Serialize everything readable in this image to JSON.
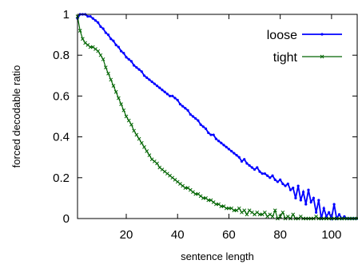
{
  "chart_data": {
    "type": "line",
    "title": "",
    "xlabel": "sentence length",
    "ylabel": "forced decodable ratio",
    "xlim": [
      1,
      110
    ],
    "ylim": [
      0,
      1
    ],
    "xticks": [
      20,
      40,
      60,
      80,
      100
    ],
    "yticks": [
      0,
      0.2,
      0.4,
      0.6,
      0.8,
      1
    ],
    "ytick_labels": [
      "0",
      "0.2",
      "0.4",
      "0.6",
      "0.8",
      "1"
    ],
    "legend_position": "top-right",
    "grid": false,
    "series": [
      {
        "name": "loose",
        "color": "#0000ff",
        "marker": "dot",
        "points": [
          [
            1,
            0.98
          ],
          [
            2,
            1.0
          ],
          [
            3,
            1.0
          ],
          [
            4,
            1.0
          ],
          [
            5,
            0.99
          ],
          [
            6,
            0.99
          ],
          [
            7,
            0.98
          ],
          [
            8,
            0.97
          ],
          [
            9,
            0.96
          ],
          [
            10,
            0.94
          ],
          [
            11,
            0.93
          ],
          [
            12,
            0.91
          ],
          [
            13,
            0.9
          ],
          [
            14,
            0.88
          ],
          [
            15,
            0.87
          ],
          [
            16,
            0.85
          ],
          [
            17,
            0.84
          ],
          [
            18,
            0.82
          ],
          [
            19,
            0.81
          ],
          [
            20,
            0.79
          ],
          [
            21,
            0.78
          ],
          [
            22,
            0.77
          ],
          [
            23,
            0.75
          ],
          [
            24,
            0.74
          ],
          [
            25,
            0.73
          ],
          [
            26,
            0.72
          ],
          [
            27,
            0.7
          ],
          [
            28,
            0.69
          ],
          [
            29,
            0.68
          ],
          [
            30,
            0.67
          ],
          [
            31,
            0.66
          ],
          [
            32,
            0.65
          ],
          [
            33,
            0.64
          ],
          [
            34,
            0.63
          ],
          [
            35,
            0.62
          ],
          [
            36,
            0.61
          ],
          [
            37,
            0.6
          ],
          [
            38,
            0.6
          ],
          [
            39,
            0.59
          ],
          [
            40,
            0.58
          ],
          [
            41,
            0.56
          ],
          [
            42,
            0.55
          ],
          [
            43,
            0.54
          ],
          [
            44,
            0.53
          ],
          [
            45,
            0.51
          ],
          [
            46,
            0.5
          ],
          [
            47,
            0.49
          ],
          [
            48,
            0.48
          ],
          [
            49,
            0.46
          ],
          [
            50,
            0.45
          ],
          [
            51,
            0.44
          ],
          [
            52,
            0.42
          ],
          [
            53,
            0.41
          ],
          [
            54,
            0.41
          ],
          [
            55,
            0.39
          ],
          [
            56,
            0.38
          ],
          [
            57,
            0.37
          ],
          [
            58,
            0.36
          ],
          [
            59,
            0.35
          ],
          [
            60,
            0.34
          ],
          [
            61,
            0.33
          ],
          [
            62,
            0.32
          ],
          [
            63,
            0.31
          ],
          [
            64,
            0.3
          ],
          [
            65,
            0.28
          ],
          [
            66,
            0.29
          ],
          [
            67,
            0.27
          ],
          [
            68,
            0.26
          ],
          [
            69,
            0.25
          ],
          [
            70,
            0.24
          ],
          [
            71,
            0.25
          ],
          [
            72,
            0.23
          ],
          [
            73,
            0.22
          ],
          [
            74,
            0.22
          ],
          [
            75,
            0.21
          ],
          [
            76,
            0.2
          ],
          [
            77,
            0.21
          ],
          [
            78,
            0.19
          ],
          [
            79,
            0.18
          ],
          [
            80,
            0.19
          ],
          [
            81,
            0.17
          ],
          [
            82,
            0.16
          ],
          [
            83,
            0.17
          ],
          [
            84,
            0.14
          ],
          [
            85,
            0.15
          ],
          [
            86,
            0.1
          ],
          [
            87,
            0.16
          ],
          [
            88,
            0.09
          ],
          [
            89,
            0.13
          ],
          [
            90,
            0.07
          ],
          [
            91,
            0.14
          ],
          [
            92,
            0.08
          ],
          [
            93,
            0.1
          ],
          [
            94,
            0.03
          ],
          [
            95,
            0.09
          ],
          [
            96,
            0.0
          ],
          [
            97,
            0.05
          ],
          [
            98,
            0.01
          ],
          [
            99,
            0.03
          ],
          [
            100,
            0.0
          ],
          [
            101,
            0.07
          ],
          [
            102,
            0.0
          ],
          [
            103,
            0.02
          ],
          [
            104,
            0.0
          ],
          [
            105,
            0.01
          ],
          [
            106,
            0.0
          ],
          [
            107,
            0.0
          ],
          [
            108,
            0.0
          ],
          [
            109,
            0.0
          ],
          [
            110,
            0.0
          ]
        ]
      },
      {
        "name": "tight",
        "color": "#006400",
        "marker": "x",
        "points": [
          [
            1,
            0.99
          ],
          [
            2,
            0.92
          ],
          [
            3,
            0.88
          ],
          [
            4,
            0.86
          ],
          [
            5,
            0.85
          ],
          [
            6,
            0.84
          ],
          [
            7,
            0.84
          ],
          [
            8,
            0.83
          ],
          [
            9,
            0.82
          ],
          [
            10,
            0.8
          ],
          [
            11,
            0.78
          ],
          [
            12,
            0.74
          ],
          [
            13,
            0.71
          ],
          [
            14,
            0.68
          ],
          [
            15,
            0.65
          ],
          [
            16,
            0.62
          ],
          [
            17,
            0.59
          ],
          [
            18,
            0.56
          ],
          [
            19,
            0.53
          ],
          [
            20,
            0.5
          ],
          [
            21,
            0.48
          ],
          [
            22,
            0.46
          ],
          [
            23,
            0.43
          ],
          [
            24,
            0.41
          ],
          [
            25,
            0.39
          ],
          [
            26,
            0.37
          ],
          [
            27,
            0.35
          ],
          [
            28,
            0.33
          ],
          [
            29,
            0.31
          ],
          [
            30,
            0.29
          ],
          [
            31,
            0.28
          ],
          [
            32,
            0.27
          ],
          [
            33,
            0.25
          ],
          [
            34,
            0.24
          ],
          [
            35,
            0.23
          ],
          [
            36,
            0.22
          ],
          [
            37,
            0.21
          ],
          [
            38,
            0.2
          ],
          [
            39,
            0.19
          ],
          [
            40,
            0.18
          ],
          [
            41,
            0.17
          ],
          [
            42,
            0.16
          ],
          [
            43,
            0.15
          ],
          [
            44,
            0.15
          ],
          [
            45,
            0.14
          ],
          [
            46,
            0.13
          ],
          [
            47,
            0.12
          ],
          [
            48,
            0.12
          ],
          [
            49,
            0.11
          ],
          [
            50,
            0.1
          ],
          [
            51,
            0.1
          ],
          [
            52,
            0.09
          ],
          [
            53,
            0.09
          ],
          [
            54,
            0.08
          ],
          [
            55,
            0.07
          ],
          [
            56,
            0.07
          ],
          [
            57,
            0.06
          ],
          [
            58,
            0.06
          ],
          [
            59,
            0.05
          ],
          [
            60,
            0.05
          ],
          [
            61,
            0.05
          ],
          [
            62,
            0.04
          ],
          [
            63,
            0.04
          ],
          [
            64,
            0.05
          ],
          [
            65,
            0.03
          ],
          [
            66,
            0.04
          ],
          [
            67,
            0.02
          ],
          [
            68,
            0.04
          ],
          [
            69,
            0.03
          ],
          [
            70,
            0.02
          ],
          [
            71,
            0.03
          ],
          [
            72,
            0.02
          ],
          [
            73,
            0.02
          ],
          [
            74,
            0.03
          ],
          [
            75,
            0.01
          ],
          [
            76,
            0.02
          ],
          [
            77,
            0.01
          ],
          [
            78,
            0.04
          ],
          [
            79,
            0.0
          ],
          [
            80,
            0.01
          ],
          [
            81,
            0.03
          ],
          [
            82,
            0.0
          ],
          [
            83,
            0.01
          ],
          [
            84,
            0.0
          ],
          [
            85,
            0.02
          ],
          [
            86,
            0.0
          ],
          [
            87,
            0.0
          ],
          [
            88,
            0.01
          ],
          [
            89,
            0.0
          ],
          [
            90,
            0.0
          ],
          [
            91,
            0.0
          ],
          [
            92,
            0.0
          ],
          [
            93,
            0.0
          ],
          [
            94,
            0.01
          ],
          [
            95,
            0.0
          ],
          [
            96,
            0.0
          ],
          [
            97,
            0.0
          ],
          [
            98,
            0.0
          ],
          [
            99,
            0.0
          ],
          [
            100,
            0.0
          ],
          [
            101,
            0.0
          ],
          [
            102,
            0.0
          ],
          [
            103,
            0.0
          ],
          [
            104,
            0.0
          ],
          [
            105,
            0.0
          ],
          [
            106,
            0.0
          ],
          [
            107,
            0.0
          ],
          [
            108,
            0.0
          ],
          [
            109,
            0.0
          ],
          [
            110,
            0.0
          ]
        ]
      }
    ]
  }
}
